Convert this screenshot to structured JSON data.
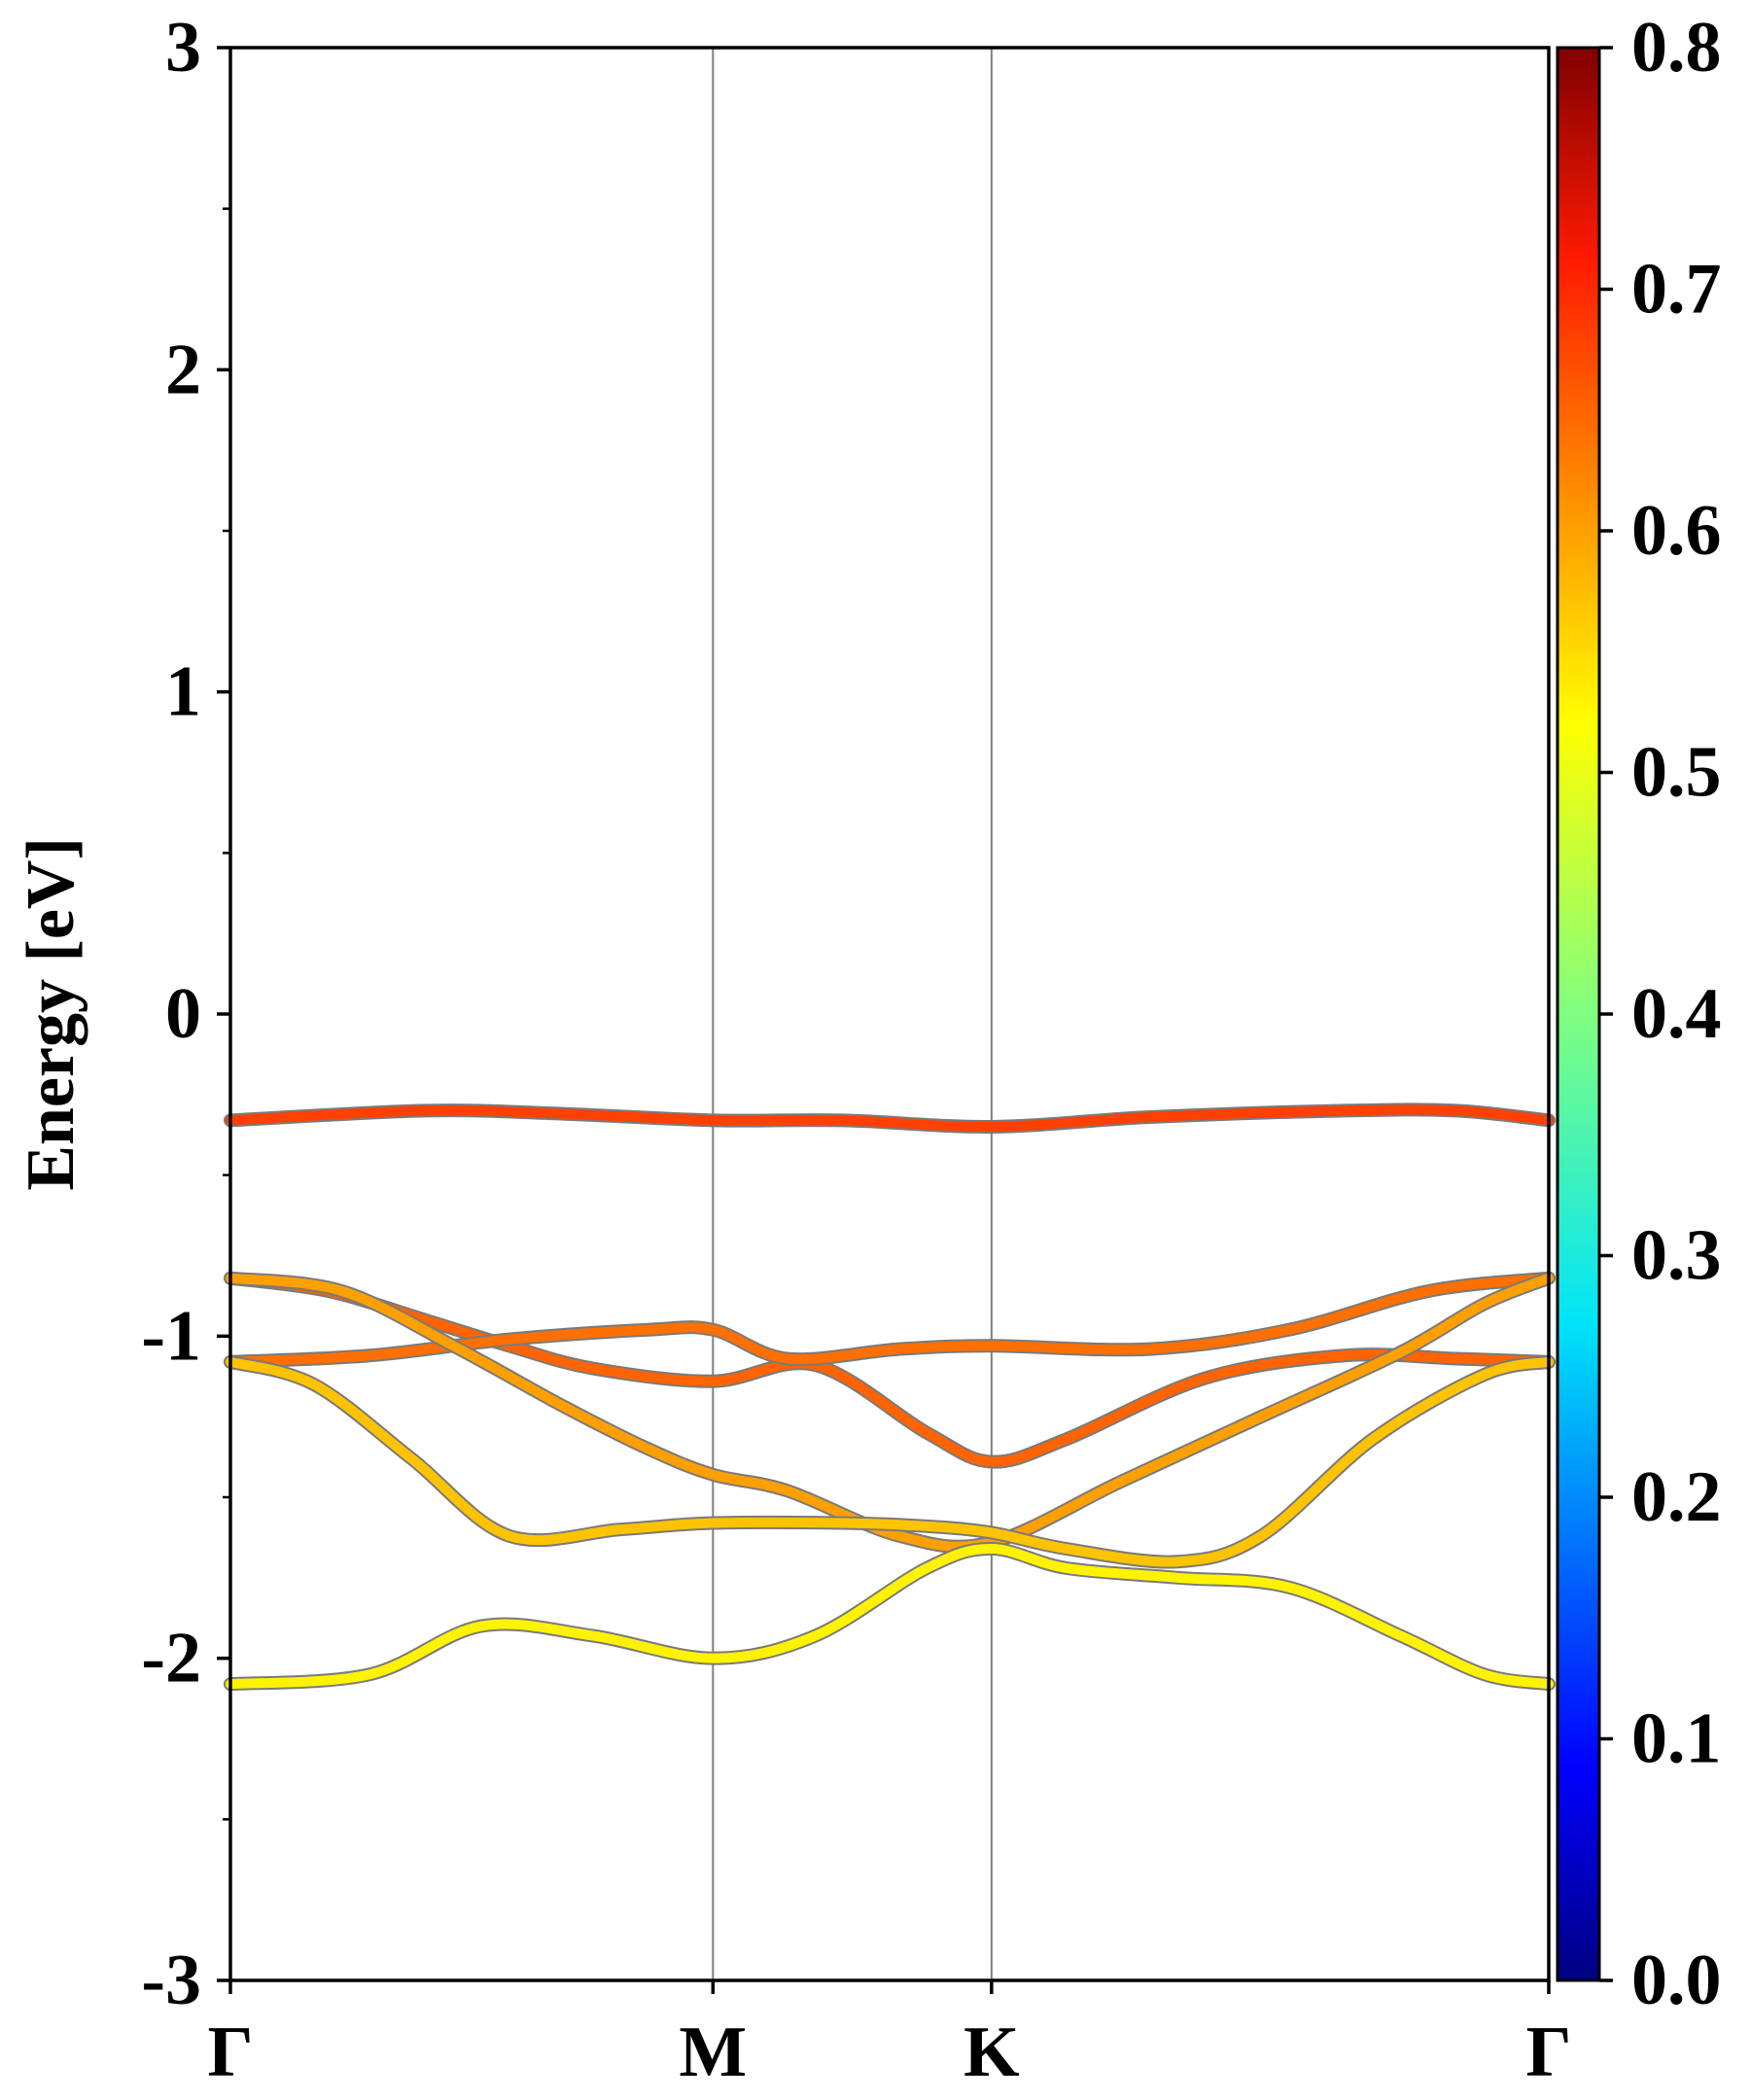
{
  "chart_data": {
    "type": "line",
    "title": "",
    "ylabel": "Energy [eV]",
    "xlabel": "",
    "ylim": [
      -3,
      3
    ],
    "y_ticks": [
      "3",
      "2",
      "1",
      "0",
      "-1",
      "-2",
      "-3"
    ],
    "y_tick_values": [
      3,
      2,
      1,
      0,
      -1,
      -2,
      -3
    ],
    "x_ticks": [
      "Γ",
      "M",
      "K",
      "Γ"
    ],
    "x_tick_positions": [
      0,
      1.732,
      2.732,
      4.732
    ],
    "xlim": [
      0,
      4.732
    ],
    "grid": false,
    "colorbar": {
      "colormap": "jet",
      "range": [
        0.0,
        0.8
      ],
      "ticks": [
        "0.0",
        "0.1",
        "0.2",
        "0.3",
        "0.4",
        "0.5",
        "0.6",
        "0.7",
        "0.8"
      ],
      "tick_values": [
        0.0,
        0.1,
        0.2,
        0.3,
        0.4,
        0.5,
        0.6,
        0.7,
        0.8
      ]
    },
    "series": [
      {
        "x": [
          0,
          0.7,
          1.2,
          1.732,
          2.2,
          2.732,
          3.3,
          4.0,
          4.4,
          4.732
        ],
        "y": [
          -0.33,
          -0.3,
          -0.31,
          -0.33,
          -0.33,
          -0.35,
          -0.32,
          -0.3,
          -0.3,
          -0.33
        ],
        "weight": 0.68
      },
      {
        "x": [
          0,
          0.35,
          0.7,
          1.0,
          1.3,
          1.732,
          2.1,
          2.5,
          2.732,
          3.0,
          3.5,
          4.0,
          4.4,
          4.732
        ],
        "y": [
          -0.82,
          -0.86,
          -0.95,
          -1.03,
          -1.1,
          -1.14,
          -1.09,
          -1.3,
          -1.39,
          -1.32,
          -1.13,
          -1.06,
          -1.07,
          -1.08
        ],
        "weight": 0.65
      },
      {
        "x": [
          0,
          0.5,
          1.0,
          1.5,
          1.732,
          2.0,
          2.4,
          2.732,
          3.3,
          3.8,
          4.3,
          4.732
        ],
        "y": [
          -1.08,
          -1.06,
          -1.01,
          -0.98,
          -0.98,
          -1.07,
          -1.04,
          -1.03,
          -1.04,
          -0.98,
          -0.86,
          -0.82
        ],
        "weight": 0.64
      },
      {
        "x": [
          0,
          0.4,
          0.8,
          1.2,
          1.5,
          1.732,
          2.0,
          2.4,
          2.732,
          3.2,
          3.7,
          4.2,
          4.5,
          4.732
        ],
        "y": [
          -0.82,
          -0.86,
          -1.03,
          -1.22,
          -1.35,
          -1.43,
          -1.48,
          -1.62,
          -1.64,
          -1.45,
          -1.25,
          -1.05,
          -0.9,
          -0.82
        ],
        "weight": 0.6
      },
      {
        "x": [
          0,
          0.3,
          0.65,
          1.0,
          1.4,
          1.732,
          2.2,
          2.5,
          2.732,
          3.0,
          3.4,
          3.7,
          4.1,
          4.5,
          4.732
        ],
        "y": [
          -1.08,
          -1.15,
          -1.38,
          -1.62,
          -1.6,
          -1.58,
          -1.58,
          -1.59,
          -1.61,
          -1.66,
          -1.7,
          -1.62,
          -1.32,
          -1.12,
          -1.08
        ],
        "weight": 0.57
      },
      {
        "x": [
          0,
          0.5,
          0.9,
          1.3,
          1.732,
          2.1,
          2.5,
          2.732,
          3.0,
          3.4,
          3.8,
          4.2,
          4.5,
          4.732
        ],
        "y": [
          -2.08,
          -2.05,
          -1.9,
          -1.93,
          -2.0,
          -1.93,
          -1.72,
          -1.66,
          -1.72,
          -1.75,
          -1.78,
          -1.93,
          -2.05,
          -2.08
        ],
        "weight": 0.53
      }
    ]
  }
}
